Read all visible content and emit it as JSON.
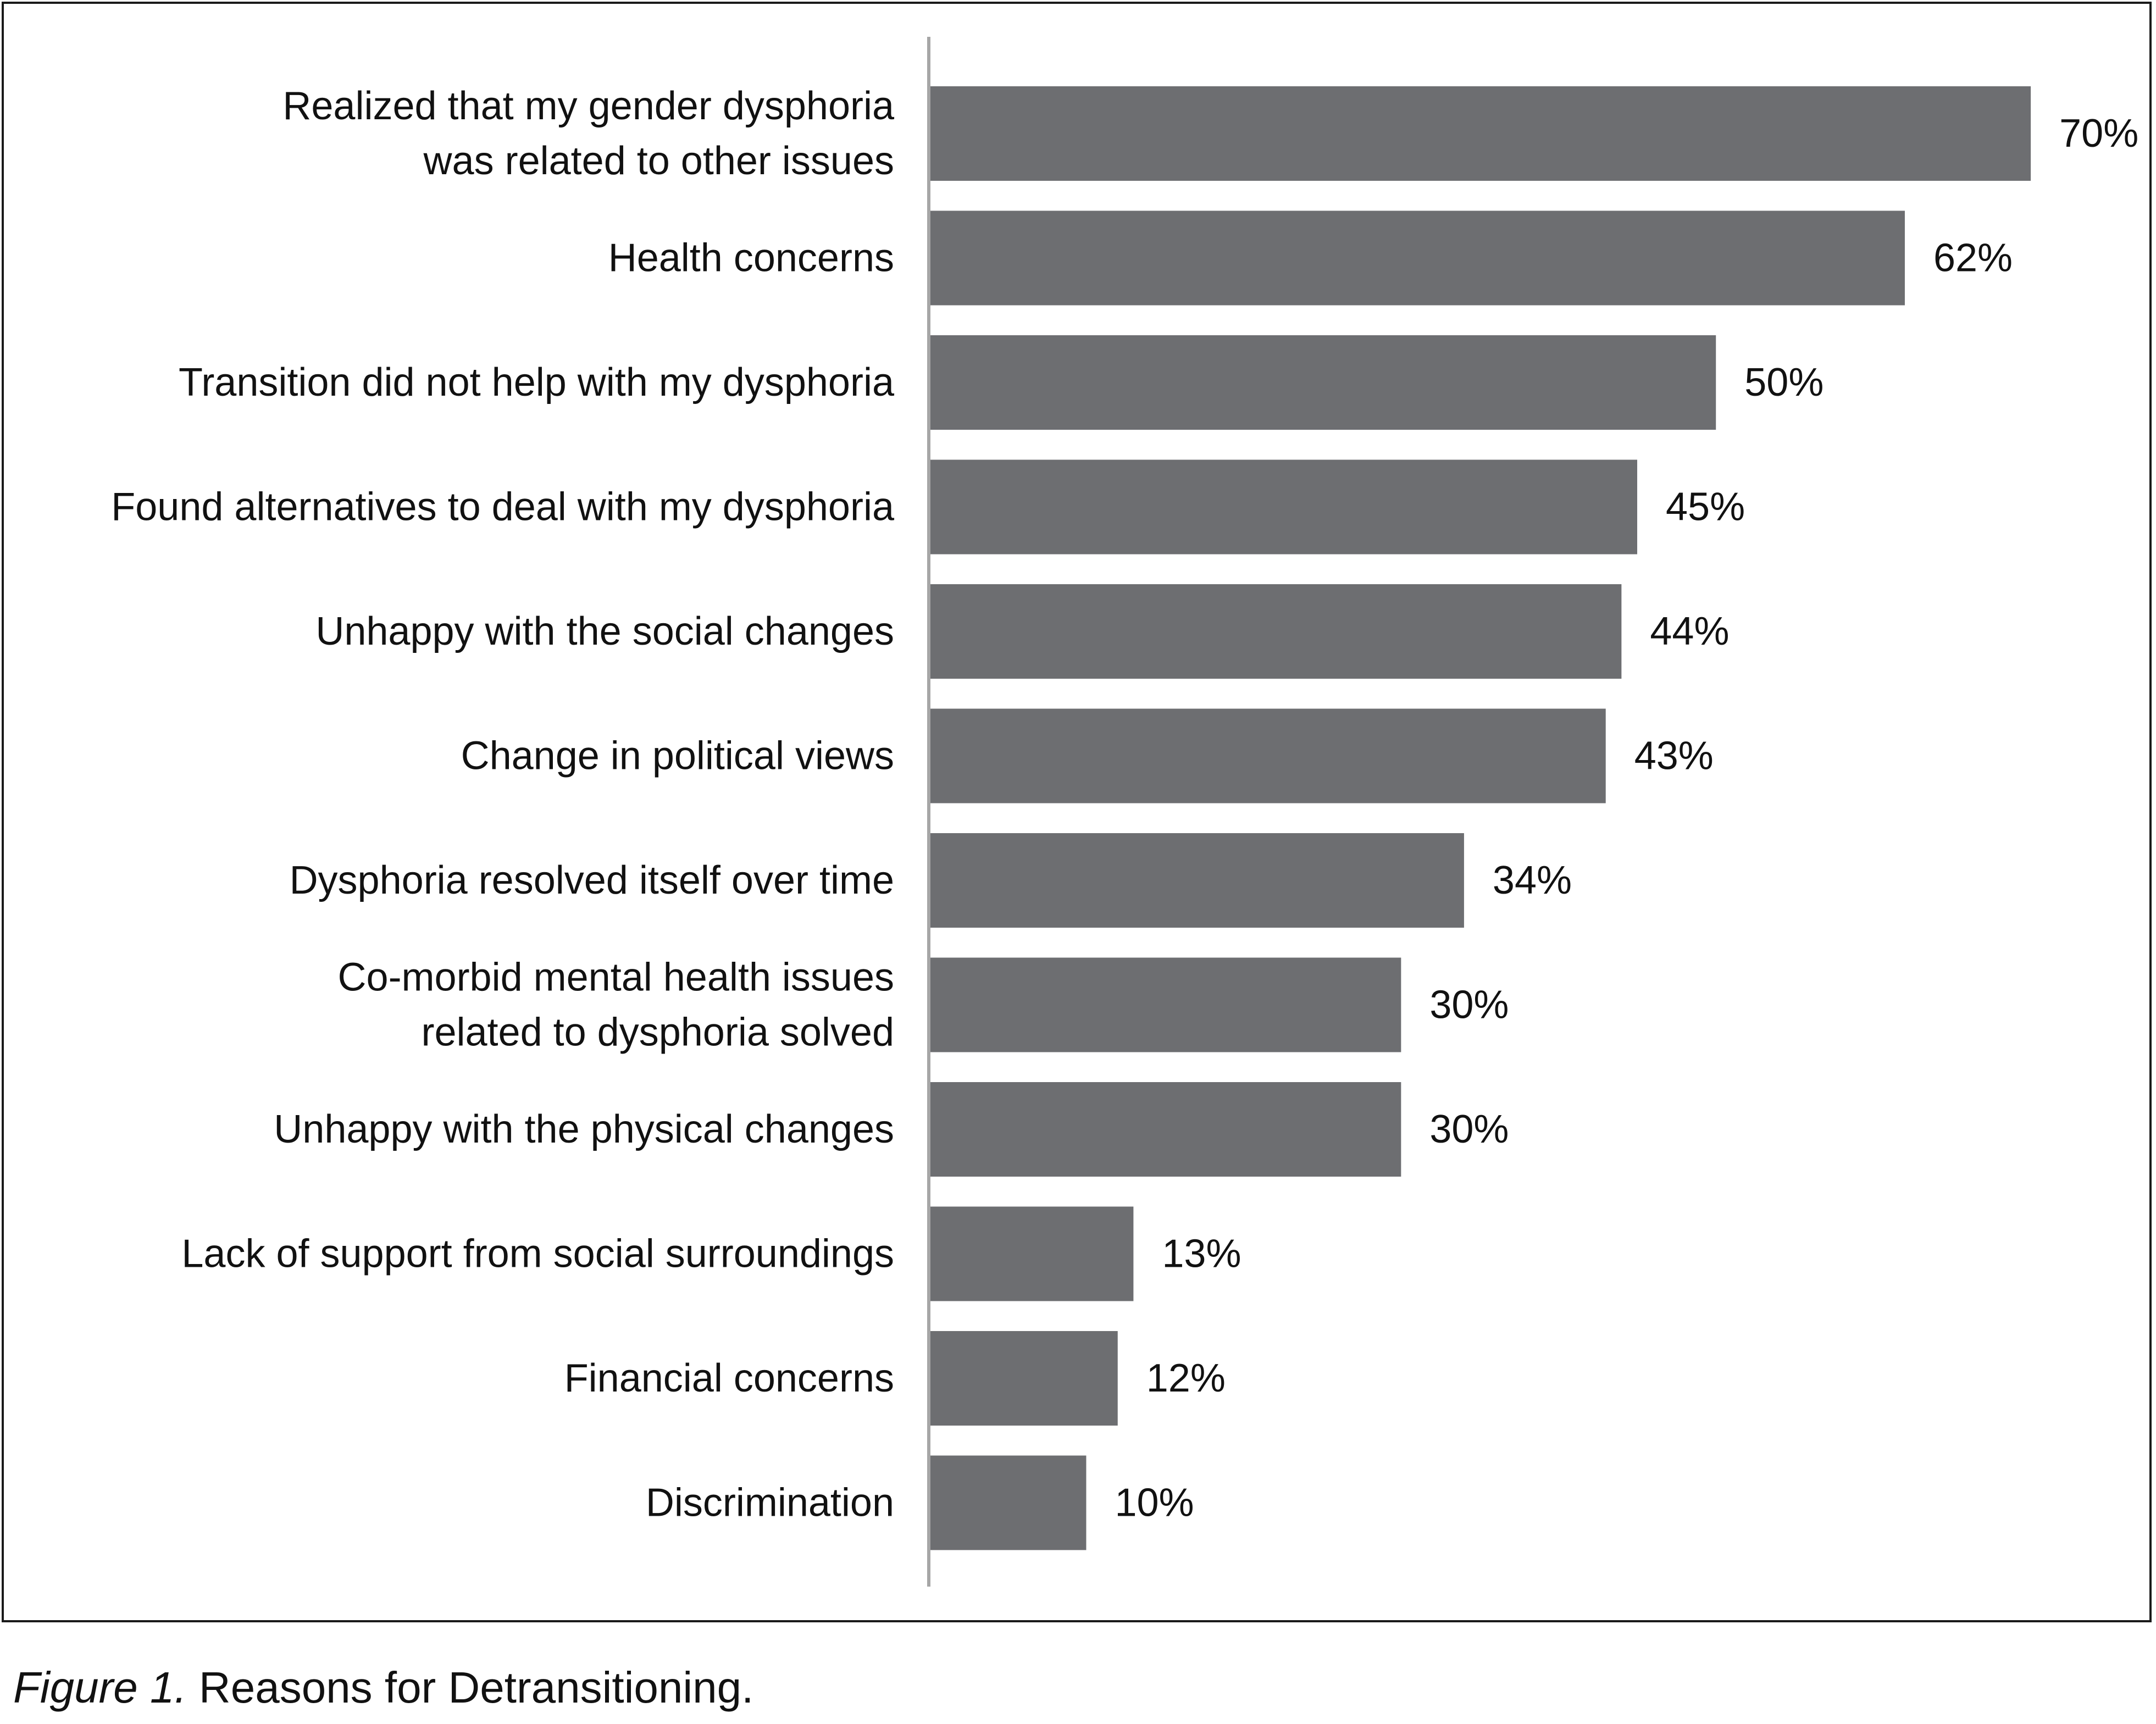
{
  "chart_data": {
    "type": "bar",
    "orientation": "horizontal",
    "categories": [
      [
        "Realized that my gender dysphoria",
        "was related to other issues"
      ],
      [
        "Health concerns"
      ],
      [
        "Transition did not help with my dysphoria"
      ],
      [
        "Found alternatives to deal with my dysphoria"
      ],
      [
        "Unhappy with the social changes"
      ],
      [
        "Change in political views"
      ],
      [
        "Dysphoria resolved itself over time"
      ],
      [
        "Co-morbid mental health issues",
        "related to dysphoria solved"
      ],
      [
        "Unhappy with the physical changes"
      ],
      [
        "Lack of support from social surroundings"
      ],
      [
        "Financial concerns"
      ],
      [
        "Discrimination"
      ]
    ],
    "values": [
      70,
      62,
      50,
      45,
      44,
      43,
      34,
      30,
      30,
      13,
      12,
      10
    ],
    "value_labels": [
      "70%",
      "62%",
      "50%",
      "45%",
      "44%",
      "43%",
      "34%",
      "30%",
      "30%",
      "13%",
      "12%",
      "10%"
    ],
    "xlim": [
      0,
      76
    ],
    "grid": false,
    "legend": "none",
    "bar_color": "#6d6e71",
    "axis_color": "#a6a6a6"
  },
  "caption": {
    "figure_label": "Figure 1.",
    "text": " Reasons for Detransitioning."
  }
}
